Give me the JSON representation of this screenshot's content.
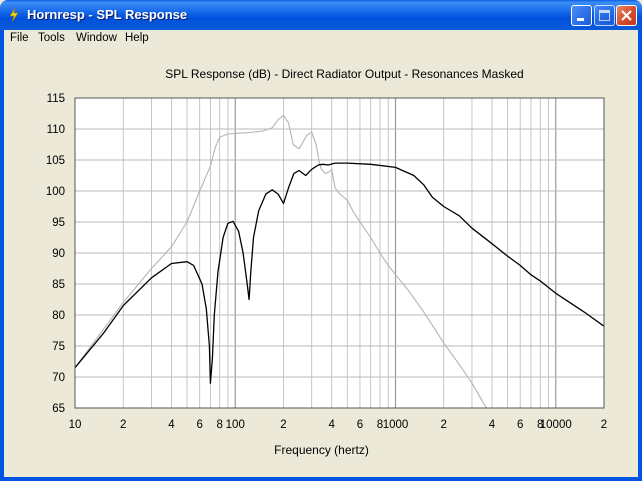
{
  "window": {
    "title": "Hornresp - SPL Response",
    "minimize_label": "Minimize",
    "maximize_label": "Maximize",
    "close_label": "Close"
  },
  "menu": {
    "items": [
      {
        "label": "File"
      },
      {
        "label": "Tools"
      },
      {
        "label": "Window"
      },
      {
        "label": "Help"
      }
    ]
  },
  "chart_data": {
    "type": "line",
    "title": "SPL Response (dB) - Direct Radiator Output - Resonances Masked",
    "xlabel": "Frequency (hertz)",
    "ylabel": "",
    "x_scale": "log",
    "xlim": [
      10,
      20000
    ],
    "ylim": [
      65,
      115
    ],
    "grid": true,
    "x_tick_labels": [
      {
        "x": 10,
        "label": "10"
      },
      {
        "x": 20,
        "label": "2"
      },
      {
        "x": 40,
        "label": "4"
      },
      {
        "x": 60,
        "label": "6"
      },
      {
        "x": 80,
        "label": "8"
      },
      {
        "x": 100,
        "label": "100"
      },
      {
        "x": 200,
        "label": "2"
      },
      {
        "x": 400,
        "label": "4"
      },
      {
        "x": 600,
        "label": "6"
      },
      {
        "x": 800,
        "label": "8"
      },
      {
        "x": 1000,
        "label": "1000"
      },
      {
        "x": 2000,
        "label": "2"
      },
      {
        "x": 4000,
        "label": "4"
      },
      {
        "x": 6000,
        "label": "6"
      },
      {
        "x": 8000,
        "label": "8"
      },
      {
        "x": 10000,
        "label": "10000"
      },
      {
        "x": 20000,
        "label": "2"
      }
    ],
    "y_ticks": [
      115,
      110,
      105,
      100,
      95,
      90,
      85,
      80,
      75,
      70,
      65
    ],
    "colors": {
      "primary": "#000000",
      "secondary": "#b4b4b4",
      "grid": "#b9b9b9",
      "plot_bg": "#ffffff"
    },
    "series": [
      {
        "color": "#000000",
        "x": [
          10,
          15,
          20,
          30,
          40,
          50,
          55,
          62,
          66,
          69,
          70,
          72,
          74,
          78,
          84,
          90,
          97,
          105,
          112,
          118,
          122,
          125,
          130,
          140,
          155,
          170,
          185,
          200,
          215,
          232,
          250,
          275,
          300,
          330,
          350,
          380,
          420,
          500,
          700,
          1000,
          1300,
          1500,
          1700,
          2000,
          2500,
          3000,
          4000,
          5000,
          6000,
          7000,
          8000,
          10000,
          15000,
          20000
        ],
        "y": [
          71.5,
          77,
          81.5,
          86,
          88.3,
          88.6,
          88,
          85,
          81,
          75,
          69,
          73,
          80,
          87,
          92.5,
          94.8,
          95.1,
          93.5,
          90,
          85.5,
          82.5,
          87,
          92.5,
          96.8,
          99.5,
          100.2,
          99.5,
          98,
          100.5,
          102.8,
          103.3,
          102.5,
          103.5,
          104.2,
          104.3,
          104.2,
          104.5,
          104.5,
          104.3,
          103.8,
          102.5,
          101,
          99,
          97.5,
          96,
          94,
          91.5,
          89.5,
          88,
          86.5,
          85.5,
          83.5,
          80.5,
          78.2
        ]
      },
      {
        "color": "#b4b4b4",
        "x": [
          10,
          20,
          30,
          40,
          50,
          60,
          70,
          75,
          80,
          90,
          100,
          120,
          150,
          170,
          185,
          200,
          215,
          230,
          250,
          280,
          300,
          320,
          335,
          345,
          365,
          390,
          400,
          420,
          450,
          500,
          550,
          600,
          700,
          800,
          900,
          1000,
          1200,
          1500,
          2000,
          2500,
          3000,
          3500,
          3700
        ],
        "y": [
          71.5,
          82,
          87.5,
          91,
          95,
          100,
          104,
          107,
          108.7,
          109.2,
          109.3,
          109.4,
          109.7,
          110.2,
          111.5,
          112.2,
          111,
          107.5,
          106.8,
          109,
          109.5,
          107.5,
          104.5,
          103.5,
          102.8,
          103.2,
          103.5,
          100.5,
          99.5,
          98.5,
          96.5,
          95,
          92.5,
          90,
          88,
          86.5,
          84,
          80.5,
          75.5,
          72,
          69,
          66,
          65
        ]
      }
    ]
  }
}
